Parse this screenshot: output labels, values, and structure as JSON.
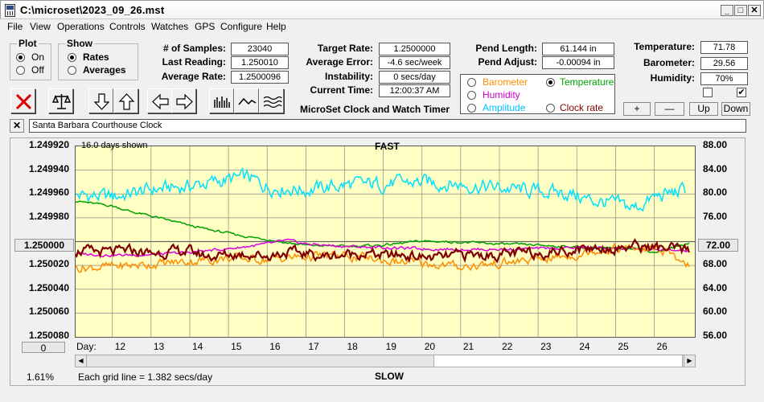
{
  "window": {
    "title": "C:\\microset\\2023_09_26.mst"
  },
  "menu": [
    "File",
    "View",
    "Operations",
    "Controls",
    "Watches",
    "GPS",
    "Configure",
    "Help"
  ],
  "plot_group": {
    "title": "Plot",
    "on": "On",
    "off": "Off"
  },
  "show_group": {
    "title": "Show",
    "rates": "Rates",
    "averages": "Averages"
  },
  "stats": {
    "samples_label": "# of Samples:",
    "samples": "23040",
    "last_label": "Last Reading:",
    "last": "1.250010",
    "avg_label": "Average Rate:",
    "avg": "1.2500096",
    "target_label": "Target Rate:",
    "target": "1.2500000",
    "avg_err_label": "Average Error:",
    "avg_err": "-4.6 sec/week",
    "instab_label": "Instability:",
    "instab": "0 secs/day",
    "time_label": "Current Time:",
    "time": "12:00:37 AM",
    "pend_len_label": "Pend Length:",
    "pend_len": "61.144 in",
    "pend_adj_label": "Pend Adjust:",
    "pend_adj": "-0.00094 in",
    "temp_label": "Temperature:",
    "temp": "71.78",
    "baro_label": "Barometer:",
    "baro": "29.56",
    "hum_label": "Humidity:",
    "hum": "70%"
  },
  "app_caption": "MicroSet Clock and Watch Timer",
  "legend": {
    "barometer": "Barometer",
    "temperature": "Temperature",
    "humidity": "Humidity",
    "amplitude": "Amplitude",
    "clock_rate": "Clock rate",
    "colors": {
      "barometer": "#ff8c00",
      "temperature": "#00a000",
      "humidity": "#cc00cc",
      "amplitude": "#00c0ff",
      "clock_rate": "#800000"
    }
  },
  "adjust_buttons": {
    "plus": "+",
    "minus": "—",
    "up": "Up",
    "down": "Down"
  },
  "checkboxes": {
    "left": "",
    "right": "✔"
  },
  "clock_name": "Santa Barbara Courthouse Clock",
  "clear_name": "✕",
  "chart_labels": {
    "days_shown": "16.0 days shown",
    "fast": "FAST",
    "slow": "SLOW",
    "grid_note": "Each grid line = 1.382 secs/day",
    "percent": "1.61%",
    "day_label": "Day:",
    "center_left": "1.250000",
    "center_right": "72.00",
    "scroll_box": "0"
  },
  "chart_data": {
    "type": "line",
    "x_days": [
      12,
      13,
      14,
      15,
      16,
      17,
      18,
      19,
      20,
      21,
      22,
      23,
      24,
      25,
      26
    ],
    "x_range": [
      11.05,
      27.05
    ],
    "left_axis": {
      "ticks": [
        "1.249920",
        "1.249940",
        "1.249960",
        "1.249980",
        "1.250000",
        "1.250020",
        "1.250040",
        "1.250060",
        "1.250080"
      ],
      "range": [
        1.24992,
        1.25008
      ],
      "inverted": true
    },
    "right_axis": {
      "ticks": [
        "88.00",
        "84.00",
        "80.00",
        "76.00",
        "72.00",
        "68.00",
        "64.00",
        "60.00",
        "56.00"
      ],
      "range": [
        56,
        88
      ]
    },
    "series": [
      {
        "name": "Amplitude",
        "color": "#00e0ff",
        "base": 80.3,
        "points": [
          [
            11.0,
            79.8
          ],
          [
            12.0,
            79.5
          ],
          [
            13.0,
            80.7
          ],
          [
            14.0,
            81.3
          ],
          [
            15.0,
            82.4
          ],
          [
            15.5,
            82.8
          ],
          [
            16.0,
            81.2
          ],
          [
            17.0,
            80.7
          ],
          [
            18.0,
            81.5
          ],
          [
            19.0,
            81.7
          ],
          [
            20.0,
            82.0
          ],
          [
            21.0,
            81.6
          ],
          [
            22.0,
            81.0
          ],
          [
            23.0,
            80.4
          ],
          [
            23.8,
            80.1
          ],
          [
            24.3,
            79.0
          ],
          [
            25.0,
            78.3
          ],
          [
            25.5,
            77.6
          ],
          [
            26.0,
            79.4
          ],
          [
            26.8,
            80.7
          ]
        ]
      },
      {
        "name": "Temperature",
        "color": "#00a000",
        "points": [
          [
            11.0,
            78.9
          ],
          [
            11.5,
            78.4
          ],
          [
            12.0,
            78.0
          ],
          [
            12.5,
            77.0
          ],
          [
            13.0,
            76.3
          ],
          [
            13.5,
            75.5
          ],
          [
            14.0,
            74.7
          ],
          [
            14.5,
            74.0
          ],
          [
            15.0,
            73.4
          ],
          [
            15.5,
            72.8
          ],
          [
            16.0,
            72.4
          ],
          [
            16.5,
            71.8
          ],
          [
            17.0,
            71.4
          ],
          [
            18.0,
            71.2
          ],
          [
            19.0,
            71.4
          ],
          [
            20.0,
            72.1
          ],
          [
            21.0,
            71.9
          ],
          [
            22.0,
            71.6
          ],
          [
            23.0,
            71.4
          ],
          [
            24.0,
            71.1
          ],
          [
            25.0,
            70.8
          ],
          [
            25.5,
            71.0
          ],
          [
            26.0,
            70.2
          ],
          [
            26.5,
            71.0
          ],
          [
            26.9,
            71.8
          ]
        ]
      },
      {
        "name": "Humidity",
        "color": "#dd00dd",
        "points": [
          [
            11.0,
            70.0
          ],
          [
            12.0,
            69.7
          ],
          [
            13.0,
            69.8
          ],
          [
            14.0,
            70.2
          ],
          [
            15.0,
            70.8
          ],
          [
            16.0,
            71.6
          ],
          [
            16.5,
            72.2
          ],
          [
            17.0,
            71.6
          ],
          [
            18.0,
            71.2
          ],
          [
            19.0,
            71.0
          ],
          [
            20.0,
            70.8
          ],
          [
            21.0,
            70.7
          ],
          [
            22.0,
            70.7
          ],
          [
            23.0,
            70.8
          ],
          [
            24.0,
            71.0
          ],
          [
            25.0,
            70.9
          ],
          [
            26.0,
            70.6
          ],
          [
            26.9,
            70.4
          ]
        ]
      },
      {
        "name": "Barometer",
        "color": "#ff8c00",
        "points": [
          [
            11.0,
            67.6
          ],
          [
            12.0,
            67.8
          ],
          [
            13.0,
            68.2
          ],
          [
            14.0,
            68.7
          ],
          [
            15.0,
            69.2
          ],
          [
            16.0,
            69.0
          ],
          [
            17.0,
            69.5
          ],
          [
            18.0,
            69.6
          ],
          [
            19.0,
            68.8
          ],
          [
            20.0,
            68.3
          ],
          [
            21.0,
            67.8
          ],
          [
            22.0,
            68.3
          ],
          [
            23.0,
            69.0
          ],
          [
            24.0,
            69.8
          ],
          [
            24.5,
            70.6
          ],
          [
            25.0,
            70.9
          ],
          [
            26.0,
            70.7
          ],
          [
            26.4,
            70.3
          ],
          [
            26.6,
            68.1
          ],
          [
            26.9,
            68.0
          ]
        ]
      },
      {
        "name": "Clock rate",
        "color": "#800000",
        "points": [
          [
            11.0,
            70.6
          ],
          [
            11.5,
            70.3
          ],
          [
            12.0,
            70.2
          ],
          [
            12.5,
            70.5
          ],
          [
            13.0,
            70.0
          ],
          [
            13.5,
            70.3
          ],
          [
            14.0,
            70.4
          ],
          [
            14.5,
            69.5
          ],
          [
            15.0,
            69.8
          ],
          [
            15.5,
            70.0
          ],
          [
            16.0,
            69.6
          ],
          [
            16.5,
            70.2
          ],
          [
            17.0,
            70.0
          ],
          [
            17.5,
            69.5
          ],
          [
            18.0,
            69.8
          ],
          [
            18.5,
            70.1
          ],
          [
            19.0,
            69.6
          ],
          [
            19.5,
            69.8
          ],
          [
            20.0,
            69.4
          ],
          [
            20.5,
            69.3
          ],
          [
            21.0,
            69.8
          ],
          [
            21.5,
            69.7
          ],
          [
            22.0,
            69.8
          ],
          [
            22.5,
            70.0
          ],
          [
            23.0,
            70.2
          ],
          [
            23.5,
            70.4
          ],
          [
            24.0,
            70.7
          ],
          [
            24.5,
            71.0
          ],
          [
            25.0,
            70.9
          ],
          [
            25.5,
            71.3
          ],
          [
            26.0,
            71.0
          ],
          [
            26.5,
            70.7
          ],
          [
            26.9,
            70.4
          ]
        ]
      }
    ]
  }
}
